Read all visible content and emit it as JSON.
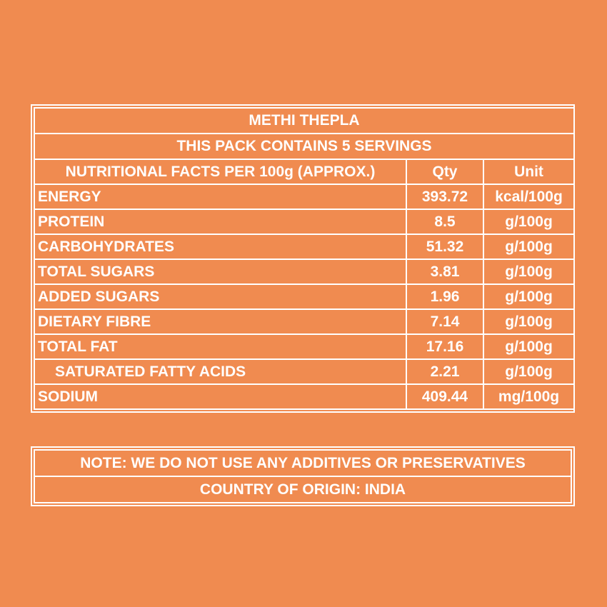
{
  "title": "METHI THEPLA",
  "servings": "THIS PACK CONTAINS 5 SERVINGS",
  "header": {
    "label": "NUTRITIONAL FACTS PER 100g (APPROX.)",
    "qty": "Qty",
    "unit": "Unit"
  },
  "rows": [
    {
      "name": "ENERGY",
      "qty": "393.72",
      "unit": "kcal/100g"
    },
    {
      "name": "PROTEIN",
      "qty": "8.5",
      "unit": "g/100g"
    },
    {
      "name": "CARBOHYDRATES",
      "qty": "51.32",
      "unit": "g/100g"
    },
    {
      "name": "TOTAL SUGARS",
      "qty": "3.81",
      "unit": "g/100g"
    },
    {
      "name": "ADDED SUGARS",
      "qty": "1.96",
      "unit": "g/100g"
    },
    {
      "name": "DIETARY FIBRE",
      "qty": "7.14",
      "unit": "g/100g"
    },
    {
      "name": "TOTAL FAT",
      "qty": "17.16",
      "unit": "g/100g"
    },
    {
      "name": "SATURATED FATTY ACIDS",
      "qty": "2.21",
      "unit": "g/100g"
    },
    {
      "name": "SODIUM",
      "qty": "409.44",
      "unit": "mg/100g"
    }
  ],
  "note": "NOTE: WE DO NOT USE ANY ADDITIVES OR PRESERVATIVES",
  "origin": "COUNTRY OF ORIGIN: INDIA",
  "colors": {
    "background": "#f08b50",
    "text_and_lines": "#ffffff"
  }
}
